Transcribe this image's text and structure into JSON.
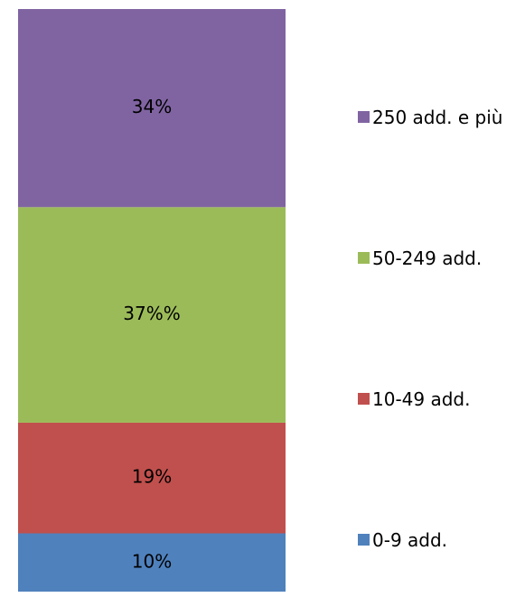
{
  "chart_data": {
    "type": "stacked_bar",
    "ylim": [
      0,
      100
    ],
    "series": [
      {
        "name": "0-9 add.",
        "color": "#4f81bd",
        "values": [
          10
        ],
        "value_labels": [
          "10%"
        ]
      },
      {
        "name": "10-49 add.",
        "color": "#c0504d",
        "values": [
          19
        ],
        "value_labels": [
          "19%"
        ]
      },
      {
        "name": "50-249 add.",
        "color": "#9bbb59",
        "values": [
          37
        ],
        "value_labels": [
          "37%%"
        ]
      },
      {
        "name": "250 add. e più",
        "color": "#8064a2",
        "values": [
          34
        ],
        "value_labels": [
          "34%"
        ]
      }
    ]
  }
}
